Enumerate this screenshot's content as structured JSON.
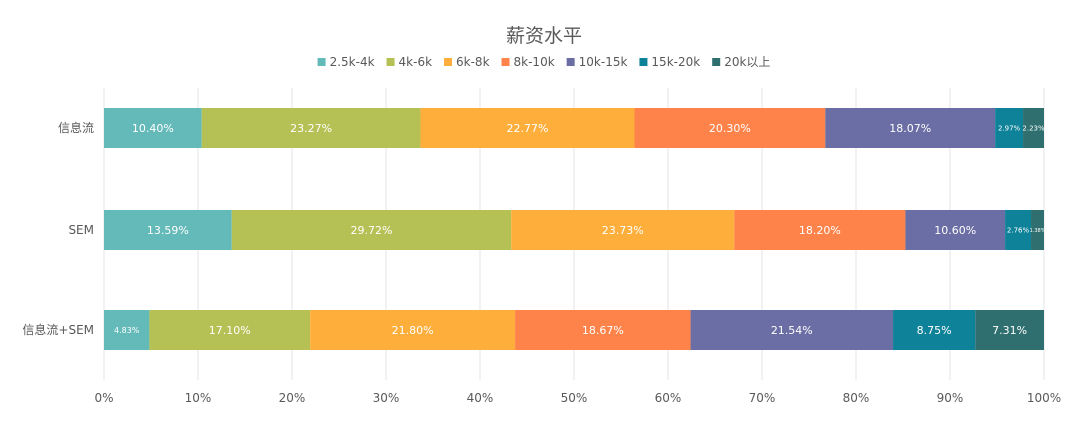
{
  "chart_data": {
    "type": "bar",
    "orientation": "horizontal",
    "stacked": "percent",
    "title": "薪资水平",
    "categories": [
      "信息流",
      "SEM",
      "信息流+SEM"
    ],
    "series": [
      {
        "name": "2.5k-4k",
        "color": "#64b9b9",
        "values": [
          10.4,
          13.59,
          4.83
        ]
      },
      {
        "name": "4k-6k",
        "color": "#b5c154",
        "values": [
          23.27,
          29.72,
          17.1
        ]
      },
      {
        "name": "6k-8k",
        "color": "#fdae3b",
        "values": [
          22.77,
          23.73,
          21.8
        ]
      },
      {
        "name": "8k-10k",
        "color": "#fe834a",
        "values": [
          20.3,
          18.2,
          18.67
        ]
      },
      {
        "name": "10k-15k",
        "color": "#6b6ea4",
        "values": [
          18.07,
          10.6,
          21.54
        ]
      },
      {
        "name": "15k-20k",
        "color": "#0e8298",
        "values": [
          2.97,
          2.76,
          8.75
        ]
      },
      {
        "name": "20k以上",
        "color": "#2f6f6f",
        "values": [
          2.23,
          1.38,
          7.31
        ]
      }
    ],
    "data_labels": [
      [
        "10.40%",
        "23.27%",
        "22.77%",
        "20.30%",
        "18.07%",
        "2.97%",
        "2.23%"
      ],
      [
        "13.59%",
        "29.72%",
        "23.73%",
        "18.20%",
        "10.60%",
        "2.76%",
        "1.38%"
      ],
      [
        "4.83%",
        "17.10%",
        "21.80%",
        "18.67%",
        "21.54%",
        "8.75%",
        "7.31%"
      ]
    ],
    "xlim": [
      0,
      100
    ],
    "x_ticks": [
      "0%",
      "10%",
      "20%",
      "30%",
      "40%",
      "50%",
      "60%",
      "70%",
      "80%",
      "90%",
      "100%"
    ],
    "grid": "vertical",
    "legend": "top"
  }
}
